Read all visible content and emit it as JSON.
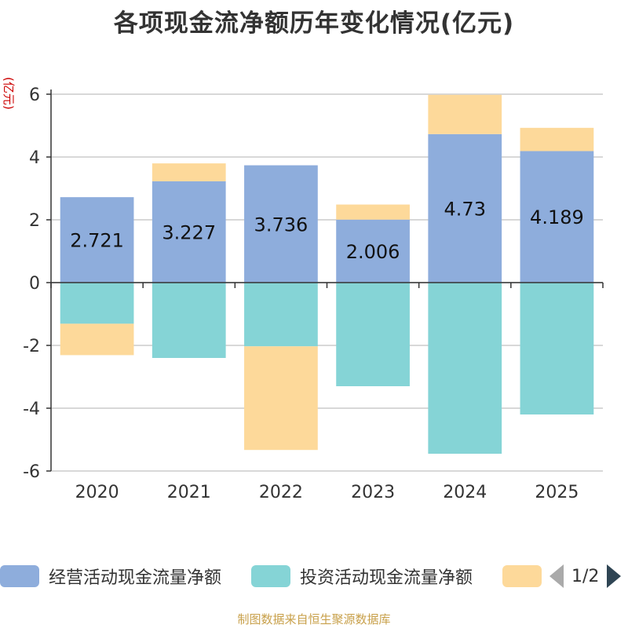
{
  "chart_data": {
    "type": "bar",
    "stacked": true,
    "title": "各项现金流净额历年变化情况(亿元)",
    "ylabel": "(亿元)",
    "categories": [
      "2020",
      "2021",
      "2022",
      "2023",
      "2024",
      "2025"
    ],
    "ylim": [
      -6,
      6
    ],
    "yticks": [
      -6,
      -4,
      -2,
      0,
      2,
      4,
      6
    ],
    "series": [
      {
        "name": "经营活动现金流量净额",
        "color": "#8eaddc",
        "values": [
          2.721,
          3.227,
          3.736,
          2.006,
          4.73,
          4.189
        ],
        "labels": [
          "2.721",
          "3.227",
          "3.736",
          "2.006",
          "4.73",
          "4.189"
        ]
      },
      {
        "name": "投资活动现金流量净额",
        "color": "#85d4d6",
        "values": [
          -1.31,
          -2.4,
          -2.03,
          -3.3,
          -5.45,
          -4.2
        ]
      },
      {
        "name": "",
        "color": "#fdd99a",
        "values": [
          -1.0,
          0.57,
          -3.3,
          0.48,
          1.25,
          0.74
        ]
      }
    ]
  },
  "legend": {
    "pager": "1/2"
  },
  "source": "制图数据来自恒生聚源数据库"
}
